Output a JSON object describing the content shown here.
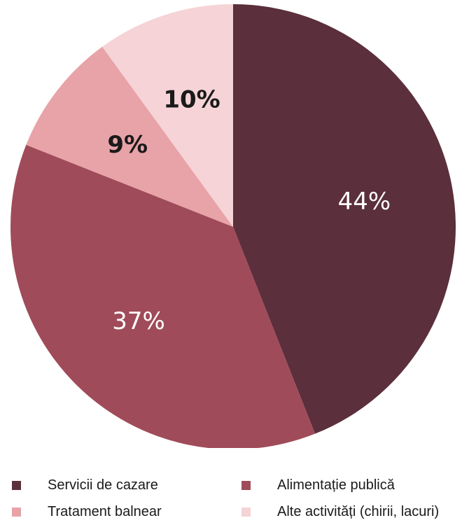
{
  "chart_data": {
    "type": "pie",
    "title": "",
    "slices": [
      {
        "name": "Servicii de cazare",
        "value": 44,
        "label": "44%",
        "color": "#5b2f3b",
        "label_color": "#ffffff"
      },
      {
        "name": "Alimentație publică",
        "value": 37,
        "label": "37%",
        "color": "#a04b59",
        "label_color": "#ffffff"
      },
      {
        "name": "Tratament balnear",
        "value": 9,
        "label": "9%",
        "color": "#e8a3a8",
        "label_color": "#1a1a1a"
      },
      {
        "name": "Alte activități (chirii, lacuri)",
        "value": 10,
        "label": "10%",
        "color": "#f5d3d6",
        "label_color": "#1a1a1a"
      }
    ],
    "legend_position": "bottom"
  }
}
